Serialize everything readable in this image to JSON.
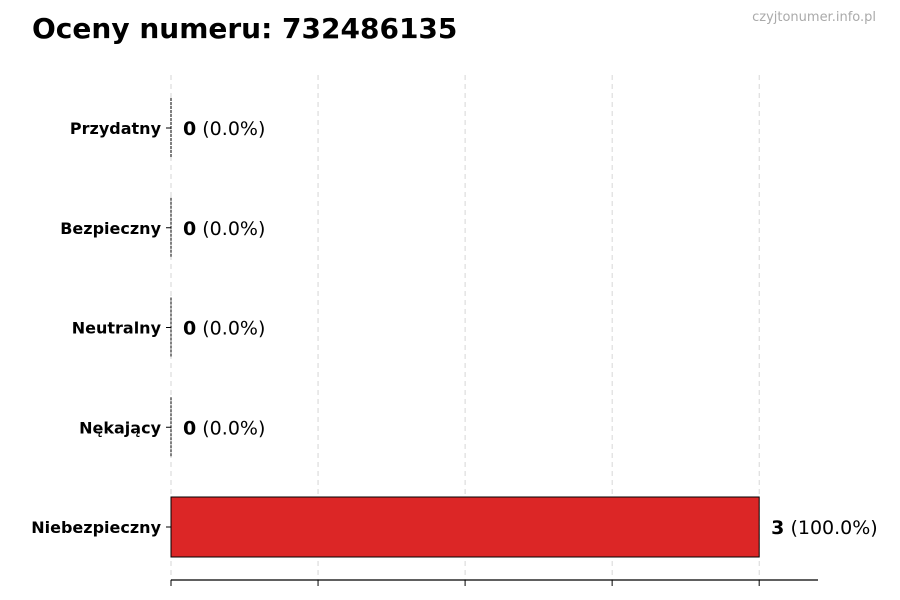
{
  "title": "Oceny numeru: 732486135",
  "watermark": "czyjtonumer.info.pl",
  "chart_data": {
    "type": "bar",
    "orientation": "horizontal",
    "title": "Oceny numeru: 732486135",
    "categories": [
      "Przydatny",
      "Bezpieczny",
      "Neutralny",
      "Nękający",
      "Niebezpieczny"
    ],
    "values": [
      0,
      0,
      0,
      0,
      3
    ],
    "data_labels": [
      {
        "count": "0",
        "percent": "(0.0%)"
      },
      {
        "count": "0",
        "percent": "(0.0%)"
      },
      {
        "count": "0",
        "percent": "(0.0%)"
      },
      {
        "count": "0",
        "percent": "(0.0%)"
      },
      {
        "count": "3",
        "percent": "(100.0%)"
      }
    ],
    "colors": [
      "#2e7d32",
      "#1565c0",
      "#9e9e9e",
      "#ef6c00",
      "#dc2626"
    ],
    "xlim": [
      0,
      3.3
    ],
    "x_gridlines": [
      0,
      0.75,
      1.5,
      2.25,
      3
    ],
    "grid": "x dashed",
    "xlabel": "",
    "ylabel": ""
  }
}
